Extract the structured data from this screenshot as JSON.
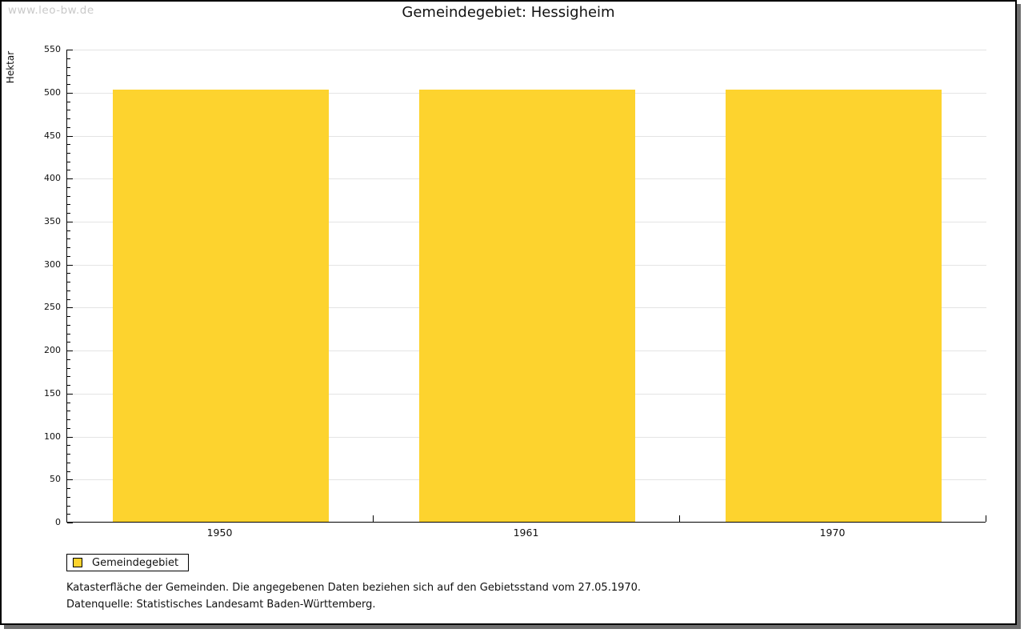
{
  "watermark": "www.leo-bw.de",
  "title": "Gemeindegebiet: Hessigheim",
  "chart_data": {
    "type": "bar",
    "title": "Gemeindegebiet: Hessigheim",
    "categories": [
      "1950",
      "1961",
      "1970"
    ],
    "series": [
      {
        "name": "Gemeindegebiet",
        "values": [
          503,
          503,
          503
        ]
      }
    ],
    "xlabel": "",
    "ylabel": "Hektar",
    "ylim": [
      0,
      550
    ],
    "ytick_step": 50,
    "yminor_step": 10,
    "grid": "horizontal-major",
    "legend_position": "bottom-left",
    "bar_color": "#fdd32e"
  },
  "legend": {
    "items": [
      {
        "label": "Gemeindegebiet",
        "color": "#fdd32e"
      }
    ]
  },
  "footer": {
    "line1": "Katasterfläche der Gemeinden. Die angegebenen Daten beziehen sich auf den Gebietsstand vom 27.05.1970.",
    "line2": "Datenquelle: Statistisches Landesamt Baden-Württemberg."
  },
  "colors": {
    "bar": "#fdd32e",
    "grid": "#e4e4e4",
    "axis": "#000000",
    "watermark": "#c9c9c9",
    "shadow": "#6f6f6f",
    "background": "#ffffff"
  }
}
